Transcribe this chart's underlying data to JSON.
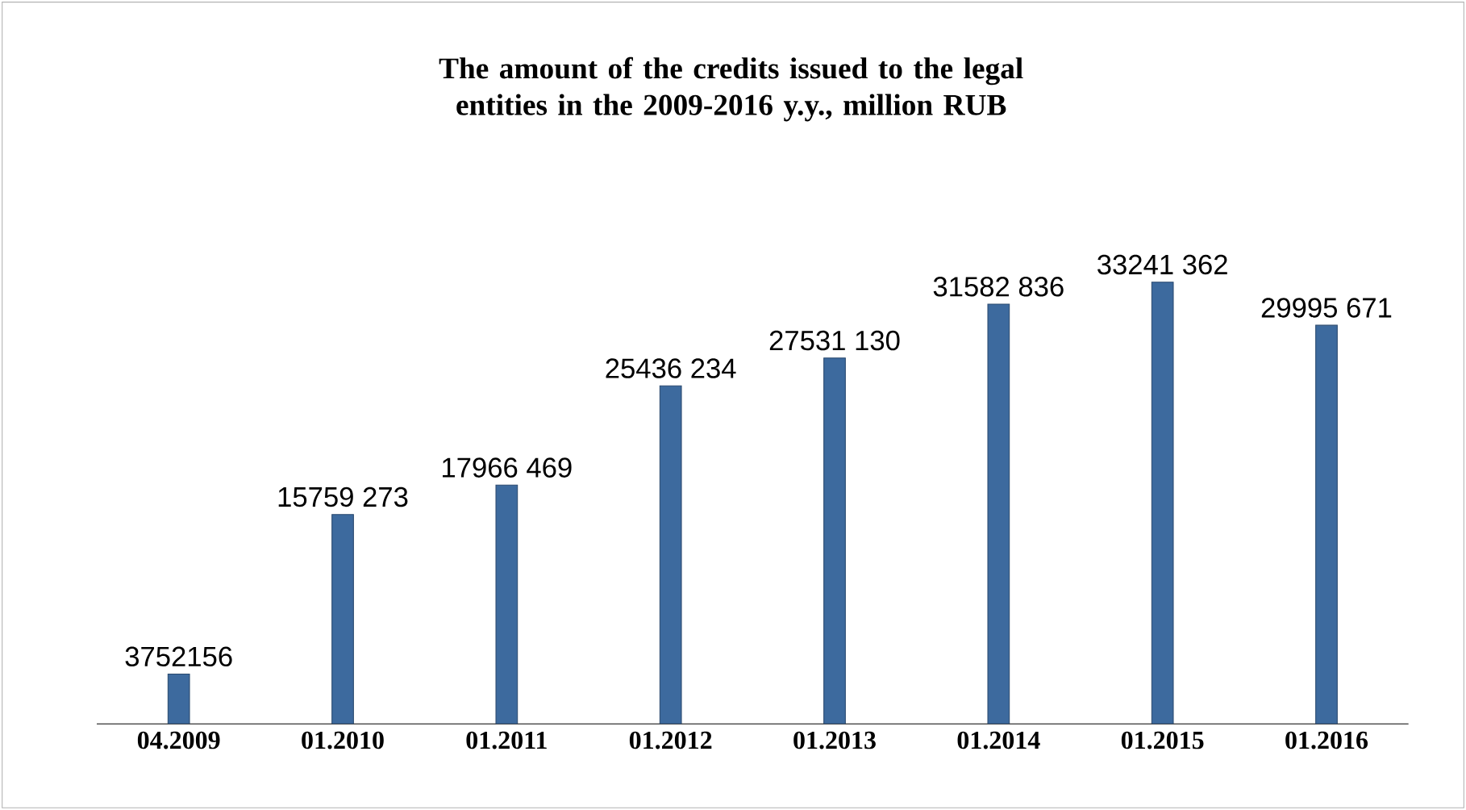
{
  "chart_data": {
    "type": "bar",
    "title": "The amount of the credits issued to the legal entities in the 2009-2016 y.y., million RUB",
    "categories": [
      "04.2009",
      "01.2010",
      "01.2011",
      "01.2012",
      "01.2013",
      "01.2014",
      "01.2015",
      "01.2016"
    ],
    "values": [
      3752156,
      15759273,
      17966469,
      25436234,
      27531130,
      31582836,
      33241362,
      29995671
    ],
    "value_labels": [
      "3752156",
      "15759 273",
      "17966 469",
      "25436 234",
      "27531 130",
      "31582 836",
      "33241 362",
      "29995 671"
    ],
    "color": "#3d6a9e",
    "tick_labels": "x"
  }
}
